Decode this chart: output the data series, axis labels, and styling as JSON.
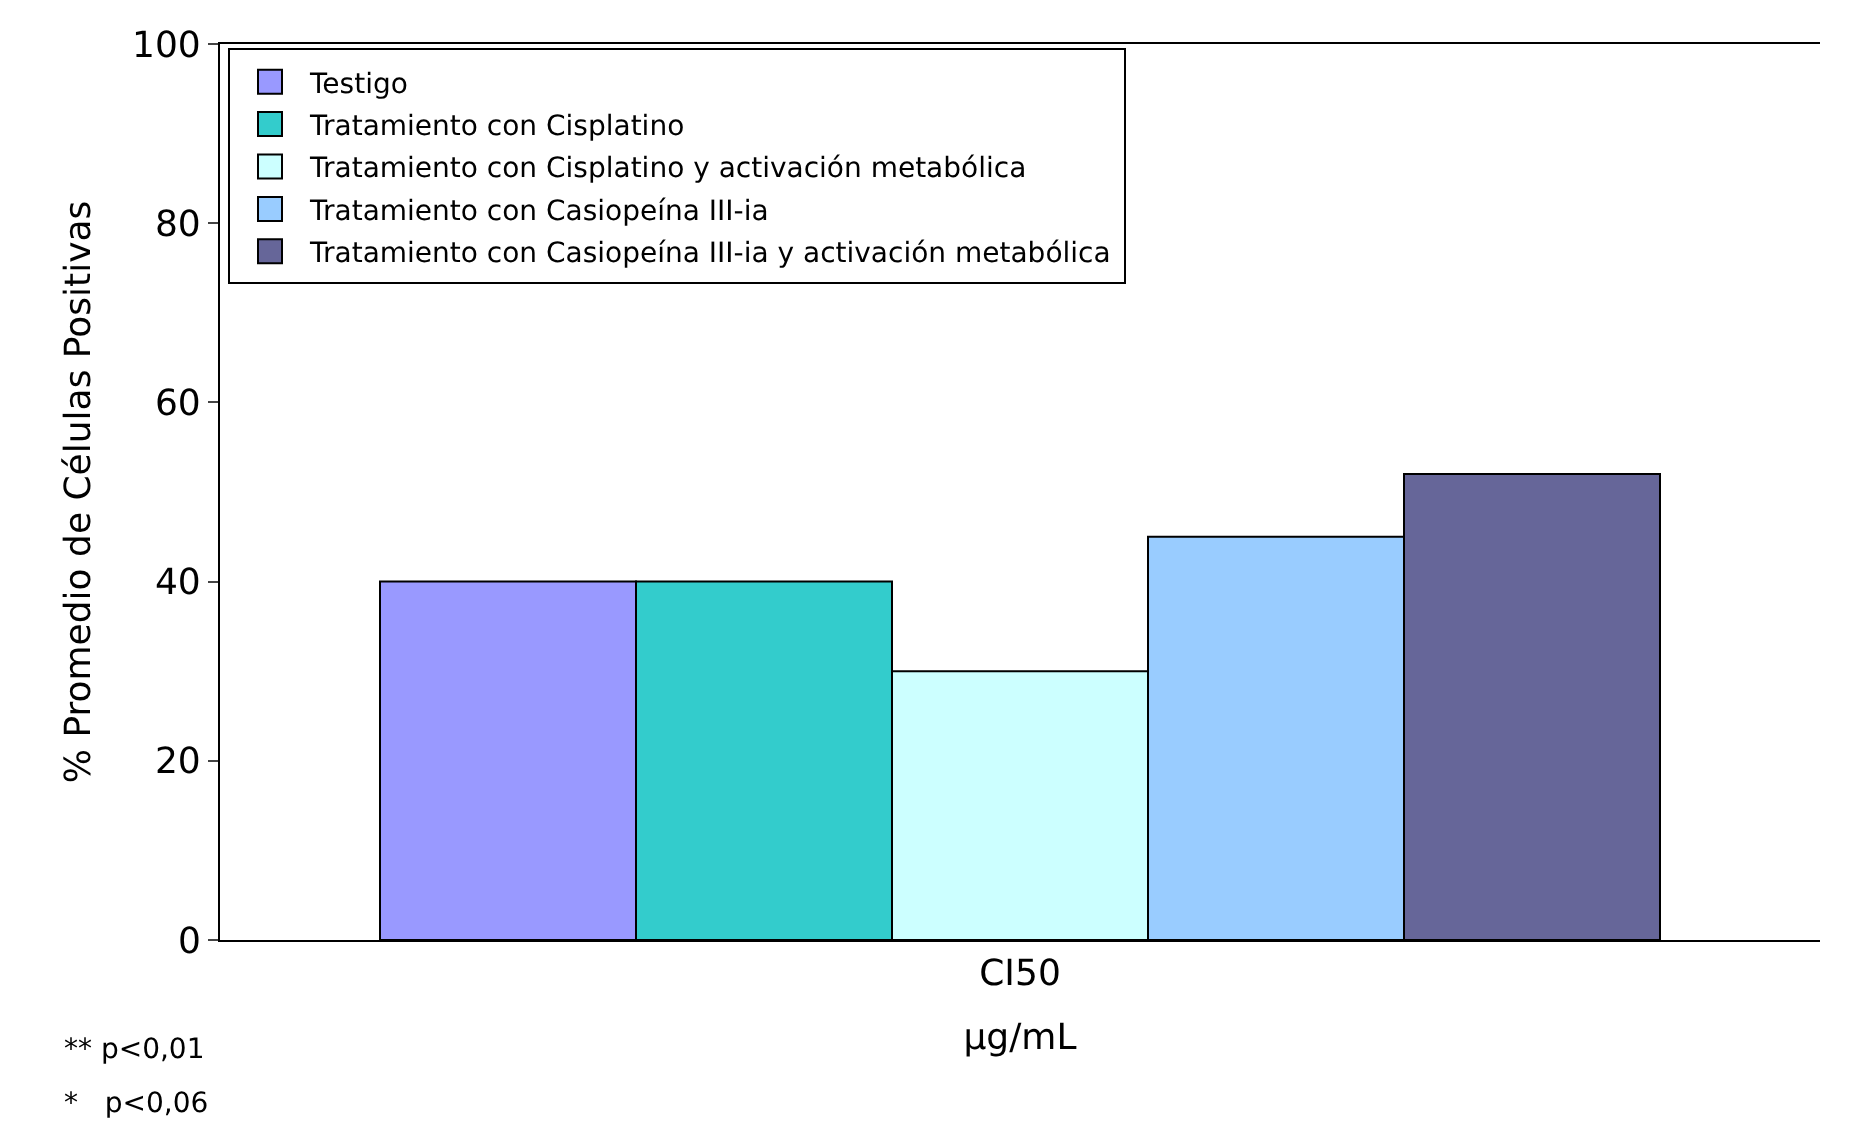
{
  "chart_data": {
    "type": "bar",
    "categories": [
      "CI50"
    ],
    "series": [
      {
        "name": "Testigo",
        "color": "#9999ff",
        "values": [
          40
        ]
      },
      {
        "name": "Tratamiento con Cisplatino",
        "color": "#33cccc",
        "values": [
          40
        ]
      },
      {
        "name": "Tratamiento con Cisplatino y activación metabólica",
        "color": "#ccffff",
        "values": [
          30
        ]
      },
      {
        "name": "Tratamiento con Casiopeína III-ia",
        "color": "#99ccff",
        "values": [
          45
        ]
      },
      {
        "name": "Tratamiento con Casiopeína III-ia y activación metabólica",
        "color": "#666699",
        "values": [
          52
        ]
      }
    ],
    "xlabel": "μg/mL",
    "ylabel": "% Promedio de Células Positivas",
    "ylim": [
      0,
      100
    ],
    "yticks": [
      0,
      20,
      40,
      60,
      80,
      100
    ],
    "annotations": [
      "** p<0,01",
      "*   p<0,06"
    ],
    "grid": false,
    "legend": "top left"
  }
}
